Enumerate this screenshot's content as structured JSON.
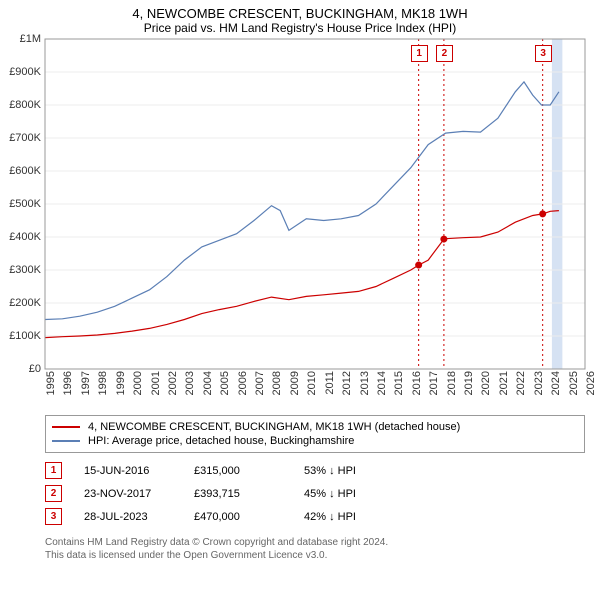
{
  "title": "4, NEWCOMBE CRESCENT, BUCKINGHAM, MK18 1WH",
  "subtitle": "Price paid vs. HM Land Registry's House Price Index (HPI)",
  "chart": {
    "type": "line",
    "background_color": "#ffffff",
    "grid_color": "#ececec",
    "x": {
      "min": 1995,
      "max": 2026,
      "ticks": [
        1995,
        1996,
        1997,
        1998,
        1999,
        2000,
        2001,
        2002,
        2003,
        2004,
        2005,
        2006,
        2007,
        2008,
        2009,
        2010,
        2011,
        2012,
        2013,
        2014,
        2015,
        2016,
        2017,
        2018,
        2019,
        2020,
        2021,
        2022,
        2023,
        2024,
        2025,
        2026
      ]
    },
    "y": {
      "min": 0,
      "max": 1000000,
      "ticks": [
        0,
        100000,
        200000,
        300000,
        400000,
        500000,
        600000,
        700000,
        800000,
        900000,
        1000000
      ],
      "labels": [
        "£0",
        "£100K",
        "£200K",
        "£300K",
        "£400K",
        "£500K",
        "£600K",
        "£700K",
        "£800K",
        "£900K",
        "£1M"
      ]
    },
    "series": [
      {
        "name": "price_paid",
        "color": "#cc0000",
        "width": 1.6,
        "points": [
          [
            1995,
            95000
          ],
          [
            1996,
            98000
          ],
          [
            1997,
            100000
          ],
          [
            1998,
            103000
          ],
          [
            1999,
            108000
          ],
          [
            2000,
            115000
          ],
          [
            2001,
            123000
          ],
          [
            2002,
            135000
          ],
          [
            2003,
            150000
          ],
          [
            2004,
            168000
          ],
          [
            2005,
            180000
          ],
          [
            2006,
            190000
          ],
          [
            2007,
            205000
          ],
          [
            2008,
            218000
          ],
          [
            2009,
            210000
          ],
          [
            2010,
            220000
          ],
          [
            2011,
            225000
          ],
          [
            2012,
            230000
          ],
          [
            2013,
            235000
          ],
          [
            2014,
            250000
          ],
          [
            2015,
            275000
          ],
          [
            2016,
            300000
          ],
          [
            2016.45,
            315000
          ],
          [
            2017,
            330000
          ],
          [
            2017.9,
            393715
          ],
          [
            2018,
            395000
          ],
          [
            2019,
            398000
          ],
          [
            2020,
            400000
          ],
          [
            2021,
            415000
          ],
          [
            2022,
            445000
          ],
          [
            2023,
            465000
          ],
          [
            2023.57,
            470000
          ],
          [
            2024,
            478000
          ],
          [
            2024.5,
            480000
          ]
        ]
      },
      {
        "name": "hpi",
        "color": "#5b7fb5",
        "width": 1.2,
        "points": [
          [
            1995,
            150000
          ],
          [
            1996,
            152000
          ],
          [
            1997,
            160000
          ],
          [
            1998,
            172000
          ],
          [
            1999,
            190000
          ],
          [
            2000,
            215000
          ],
          [
            2001,
            240000
          ],
          [
            2002,
            280000
          ],
          [
            2003,
            330000
          ],
          [
            2004,
            370000
          ],
          [
            2005,
            390000
          ],
          [
            2006,
            410000
          ],
          [
            2007,
            450000
          ],
          [
            2008,
            495000
          ],
          [
            2008.5,
            480000
          ],
          [
            2009,
            420000
          ],
          [
            2010,
            455000
          ],
          [
            2011,
            450000
          ],
          [
            2012,
            455000
          ],
          [
            2013,
            465000
          ],
          [
            2014,
            500000
          ],
          [
            2015,
            555000
          ],
          [
            2016,
            610000
          ],
          [
            2017,
            680000
          ],
          [
            2018,
            715000
          ],
          [
            2019,
            720000
          ],
          [
            2020,
            718000
          ],
          [
            2021,
            760000
          ],
          [
            2022,
            840000
          ],
          [
            2022.5,
            870000
          ],
          [
            2023,
            830000
          ],
          [
            2023.5,
            800000
          ],
          [
            2024,
            800000
          ],
          [
            2024.5,
            840000
          ]
        ]
      }
    ],
    "sale_markers": [
      {
        "id": "1",
        "x": 2016.45,
        "line_color": "#cc0000"
      },
      {
        "id": "2",
        "x": 2017.9,
        "line_color": "#cc0000"
      },
      {
        "id": "3",
        "x": 2023.57,
        "line_color": "#cc0000"
      }
    ],
    "hpi_band": {
      "from": 2024.1,
      "to": 2024.7,
      "color": "#d6e2f3"
    },
    "marker_box": {
      "border": "#cc0000",
      "text": "#cc0000",
      "size": 15
    }
  },
  "legend": {
    "items": [
      {
        "color": "#cc0000",
        "label": "4, NEWCOMBE CRESCENT, BUCKINGHAM, MK18 1WH (detached house)"
      },
      {
        "color": "#5b7fb5",
        "label": "HPI: Average price, detached house, Buckinghamshire"
      }
    ]
  },
  "marker_rows": [
    {
      "id": "1",
      "date": "15-JUN-2016",
      "price": "£315,000",
      "delta": "53% ↓ HPI"
    },
    {
      "id": "2",
      "date": "23-NOV-2017",
      "price": "£393,715",
      "delta": "45% ↓ HPI"
    },
    {
      "id": "3",
      "date": "28-JUL-2023",
      "price": "£470,000",
      "delta": "42% ↓ HPI"
    }
  ],
  "footer": {
    "line1": "Contains HM Land Registry data © Crown copyright and database right 2024.",
    "line2": "This data is licensed under the Open Government Licence v3.0."
  }
}
